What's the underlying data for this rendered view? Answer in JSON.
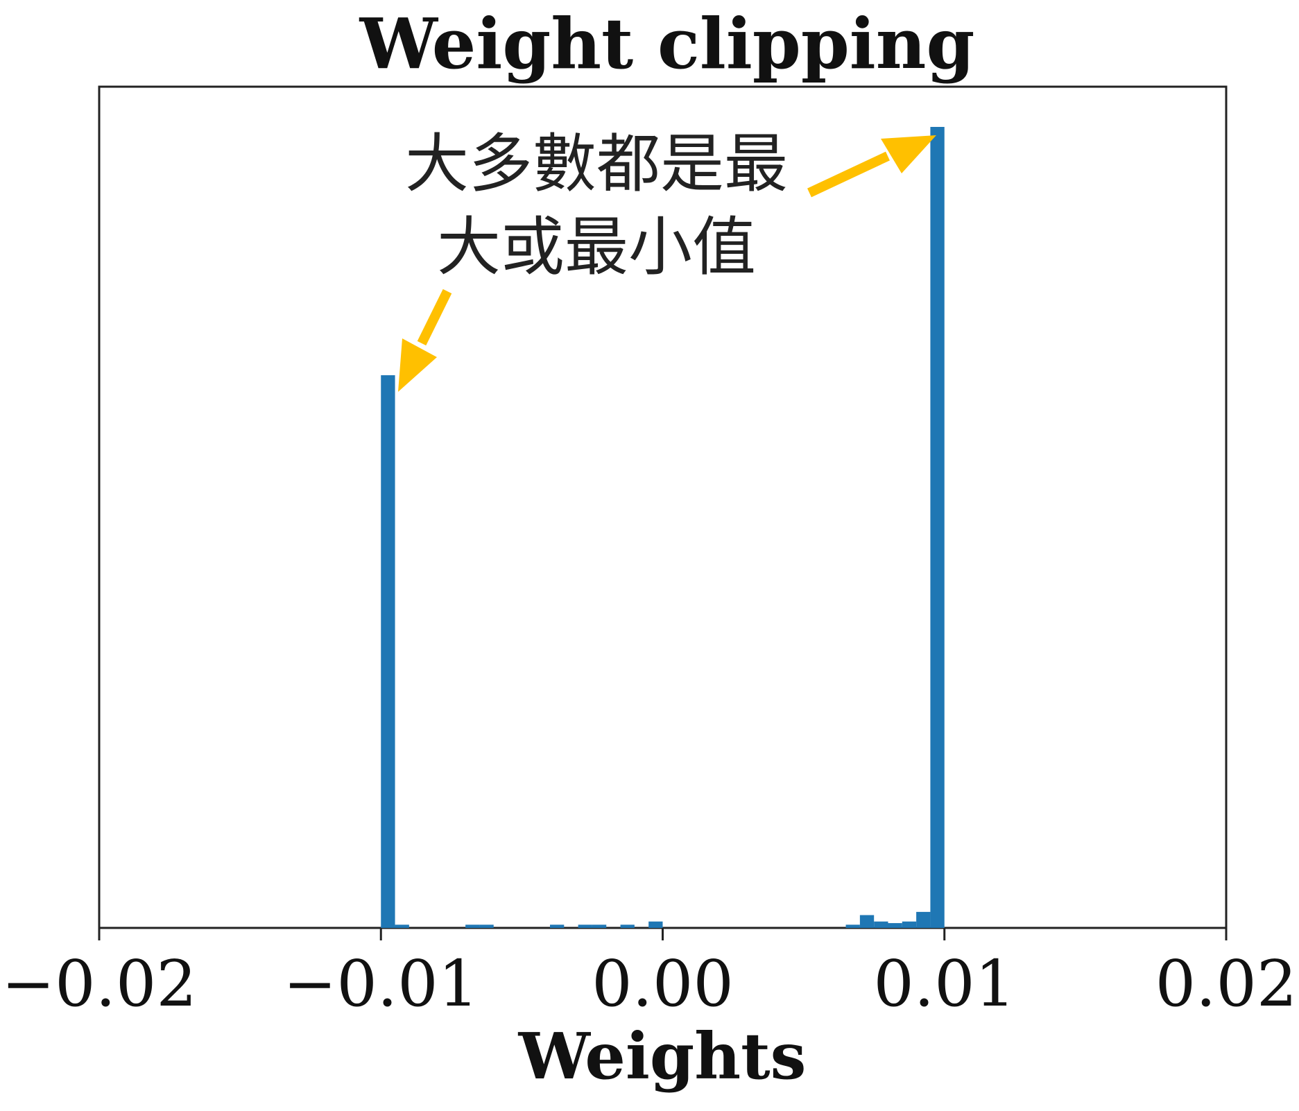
{
  "chart_data": {
    "type": "bar",
    "title": "Weight clipping",
    "xlabel": "Weights",
    "ylabel": "",
    "xlim": [
      -0.02,
      0.02
    ],
    "ylim": [
      0,
      1.05
    ],
    "xticks": [
      -0.02,
      -0.01,
      0.0,
      0.01,
      0.02
    ],
    "xtick_labels": [
      "−0.02",
      "−0.01",
      "0.00",
      "0.01",
      "0.02"
    ],
    "grid": false,
    "bar_color": "#1f77b4",
    "bin_width": 0.0005,
    "bins": [
      {
        "x": -0.01,
        "value": 0.69
      },
      {
        "x": -0.0095,
        "value": 0.004
      },
      {
        "x": -0.007,
        "value": 0.004
      },
      {
        "x": -0.0065,
        "value": 0.004
      },
      {
        "x": -0.004,
        "value": 0.004
      },
      {
        "x": -0.003,
        "value": 0.004
      },
      {
        "x": -0.0025,
        "value": 0.004
      },
      {
        "x": -0.0015,
        "value": 0.004
      },
      {
        "x": -0.0005,
        "value": 0.008
      },
      {
        "x": 0.0065,
        "value": 0.004
      },
      {
        "x": 0.007,
        "value": 0.016
      },
      {
        "x": 0.0075,
        "value": 0.008
      },
      {
        "x": 0.008,
        "value": 0.006
      },
      {
        "x": 0.0085,
        "value": 0.008
      },
      {
        "x": 0.009,
        "value": 0.02
      },
      {
        "x": 0.0095,
        "value": 1.0
      }
    ],
    "annotation": {
      "line1": "大多數都是最",
      "line2": "大或最小值",
      "arrow_color": "#ffc000"
    }
  }
}
